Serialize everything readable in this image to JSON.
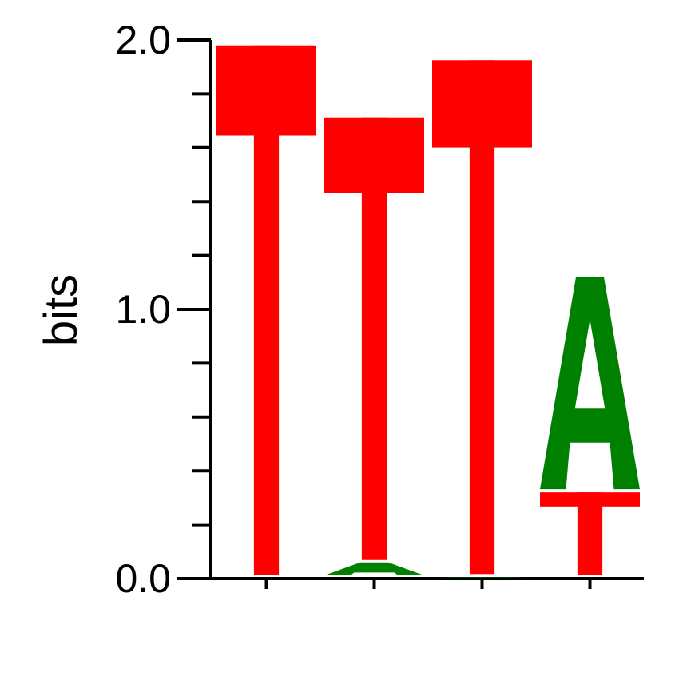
{
  "chart_data": {
    "type": "sequence-logo",
    "ylabel": "bits",
    "ylim": [
      0,
      2.0
    ],
    "yticks": [
      {
        "value": 0.0,
        "label": "0.0"
      },
      {
        "value": 1.0,
        "label": "1.0"
      },
      {
        "value": 2.0,
        "label": "2.0"
      }
    ],
    "minor_tick_step": 0.2,
    "grid": false,
    "colors": {
      "T": "#ff0000",
      "A": "#008000"
    },
    "positions": [
      {
        "position": 1,
        "letters": [
          {
            "letter": "T",
            "bits": 1.98
          }
        ]
      },
      {
        "position": 2,
        "letters": [
          {
            "letter": "A",
            "bits": 0.06
          },
          {
            "letter": "T",
            "bits": 1.65
          }
        ]
      },
      {
        "position": 3,
        "letters": [
          {
            "letter": "A",
            "bits": 0.005
          },
          {
            "letter": "T",
            "bits": 1.92
          }
        ]
      },
      {
        "position": 4,
        "letters": [
          {
            "letter": "T",
            "bits": 0.32
          },
          {
            "letter": "A",
            "bits": 0.8
          }
        ]
      }
    ]
  }
}
